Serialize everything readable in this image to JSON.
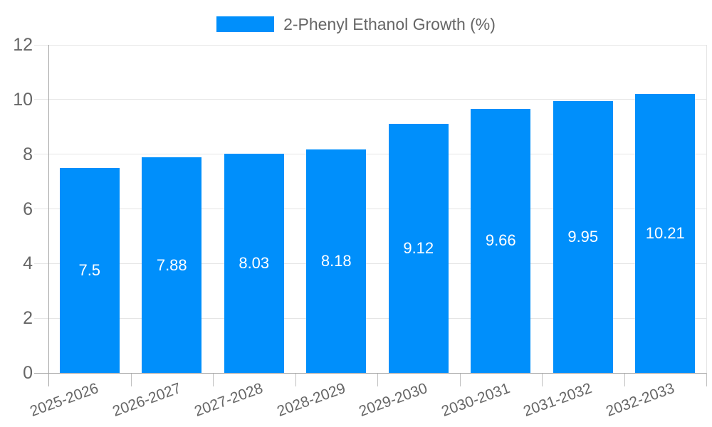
{
  "legend": {
    "label": "2-Phenyl Ethanol Growth (%)"
  },
  "colors": {
    "bar": "#008FFB",
    "grid": "#e5e5e5",
    "axis": "#a6a6a6",
    "label_text": "#666666",
    "value_label_text": "#ffffff",
    "background": "#ffffff"
  },
  "chart_data": {
    "type": "bar",
    "title": "2-Phenyl Ethanol Growth (%)",
    "categories": [
      "2025-2026",
      "2026-2027",
      "2027-2028",
      "2028-2029",
      "2029-2030",
      "2030-2031",
      "2031-2032",
      "2032-2033"
    ],
    "values": [
      7.5,
      7.88,
      8.03,
      8.18,
      9.12,
      9.66,
      9.95,
      10.21
    ],
    "value_labels": [
      "7.5",
      "7.88",
      "8.03",
      "8.18",
      "9.12",
      "9.66",
      "9.95",
      "10.21"
    ],
    "xlabel": "",
    "ylabel": "",
    "ylim": [
      0,
      12
    ],
    "yticks": [
      0,
      2,
      4,
      6,
      8,
      10,
      12
    ],
    "grid": "horizontal",
    "legend_position": "top",
    "x_label_rotation_deg": -20
  }
}
